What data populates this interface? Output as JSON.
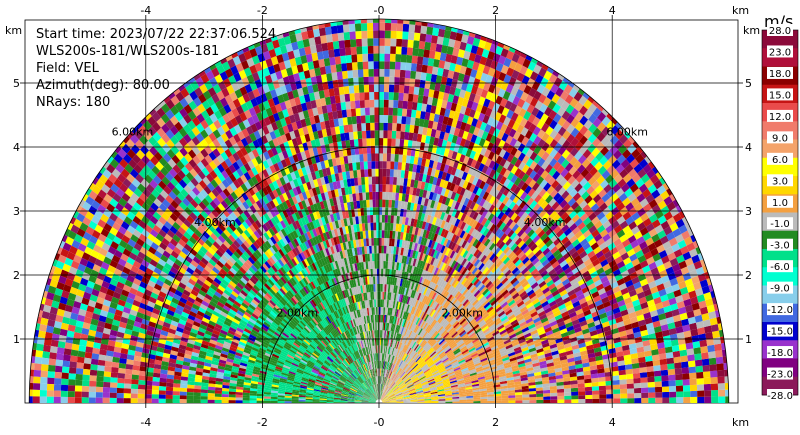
{
  "chart_data": {
    "type": "heatmap",
    "info": {
      "start_time": "Start time: 2023/07/22 22:37:06.524",
      "instrument": "WLS200s-181/WLS200s-181",
      "field": "Field: VEL",
      "azimuth": "Azimuth(deg): 80.00",
      "nrays": "NRays: 180"
    },
    "x_unit": "km",
    "y_unit": "km",
    "x_ticks": [
      -4,
      -2,
      0,
      2,
      4
    ],
    "x_tick_labels": [
      "-4",
      "-2",
      "-0",
      "2",
      "4"
    ],
    "y_ticks": [
      1,
      2,
      3,
      4,
      5
    ],
    "y_tick_labels": [
      "1",
      "2",
      "3",
      "4",
      "5"
    ],
    "xlim": [
      -6,
      6
    ],
    "ylim": [
      0,
      6
    ],
    "range_rings_km": [
      2,
      4,
      6
    ],
    "range_ring_labels": [
      "2.00km",
      "4.00km",
      "6.00km"
    ],
    "max_range_km": 6,
    "colorbar": {
      "unit": "m/s",
      "tick_labels": [
        "28.0",
        "23.0",
        "18.0",
        "15.0",
        "12.0",
        "9.0",
        "6.0",
        "3.0",
        "1.0",
        "-1.0",
        "-3.0",
        "-6.0",
        "-9.0",
        "-12.0",
        "-15.0",
        "-18.0",
        "-23.0",
        "-28.0"
      ],
      "colors": [
        "#8b0a3a",
        "#b0103a",
        "#8b0000",
        "#c61414",
        "#ea4b4b",
        "#f07b6b",
        "#f4a36a",
        "#ffff00",
        "#ffd700",
        "#f4a040",
        "#bbbbbb",
        "#228b22",
        "#00e08a",
        "#00ffd0",
        "#87ceeb",
        "#4169e1",
        "#0000cd",
        "#9932cc",
        "#800080",
        "#8b1a5a"
      ]
    },
    "grid": true
  }
}
